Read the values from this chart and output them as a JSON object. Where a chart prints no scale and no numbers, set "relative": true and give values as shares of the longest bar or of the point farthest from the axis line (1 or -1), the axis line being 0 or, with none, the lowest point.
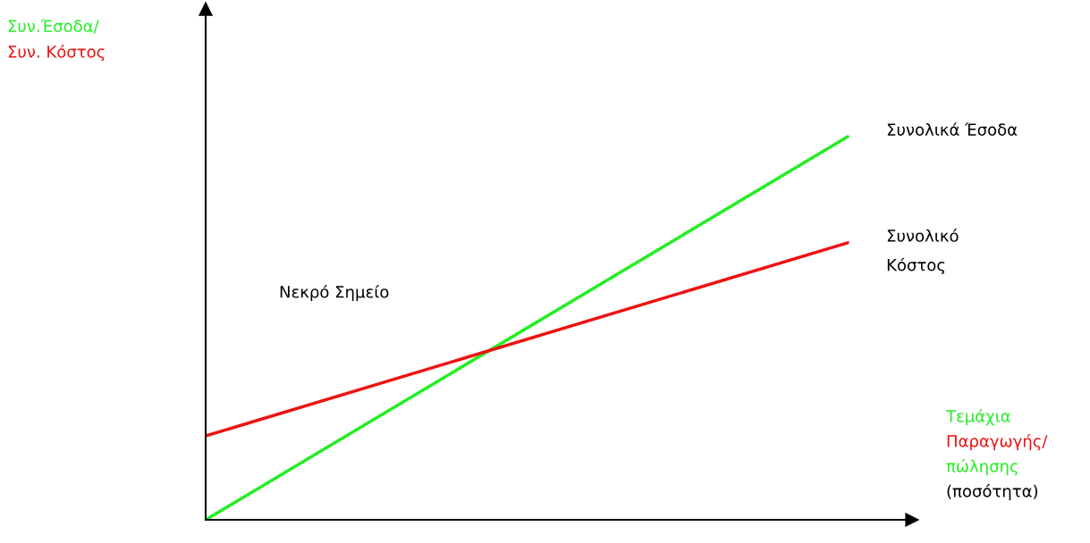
{
  "chart_data": {
    "type": "line",
    "relative": true,
    "categories": [
      null,
      null
    ],
    "series": [
      {
        "name": "Συνολικά Έσοδα",
        "color": "#22ee22",
        "values": [
          0,
          1
        ]
      },
      {
        "name": "Συνολικό\nΚόστος",
        "color": "#ee1111",
        "values": [
          0.219,
          0.723
        ]
      }
    ],
    "ylabel": "Συν.Έσοδα/\nΣυν. Κόστος",
    "xlabel": "Τεμάχια\nΠαραγωγής/\nπώλησης\n(ποσότητα)",
    "annotations": [
      "Νεκρό Σημείο"
    ],
    "legend": false,
    "marker": "none",
    "line_style": "solid"
  }
}
